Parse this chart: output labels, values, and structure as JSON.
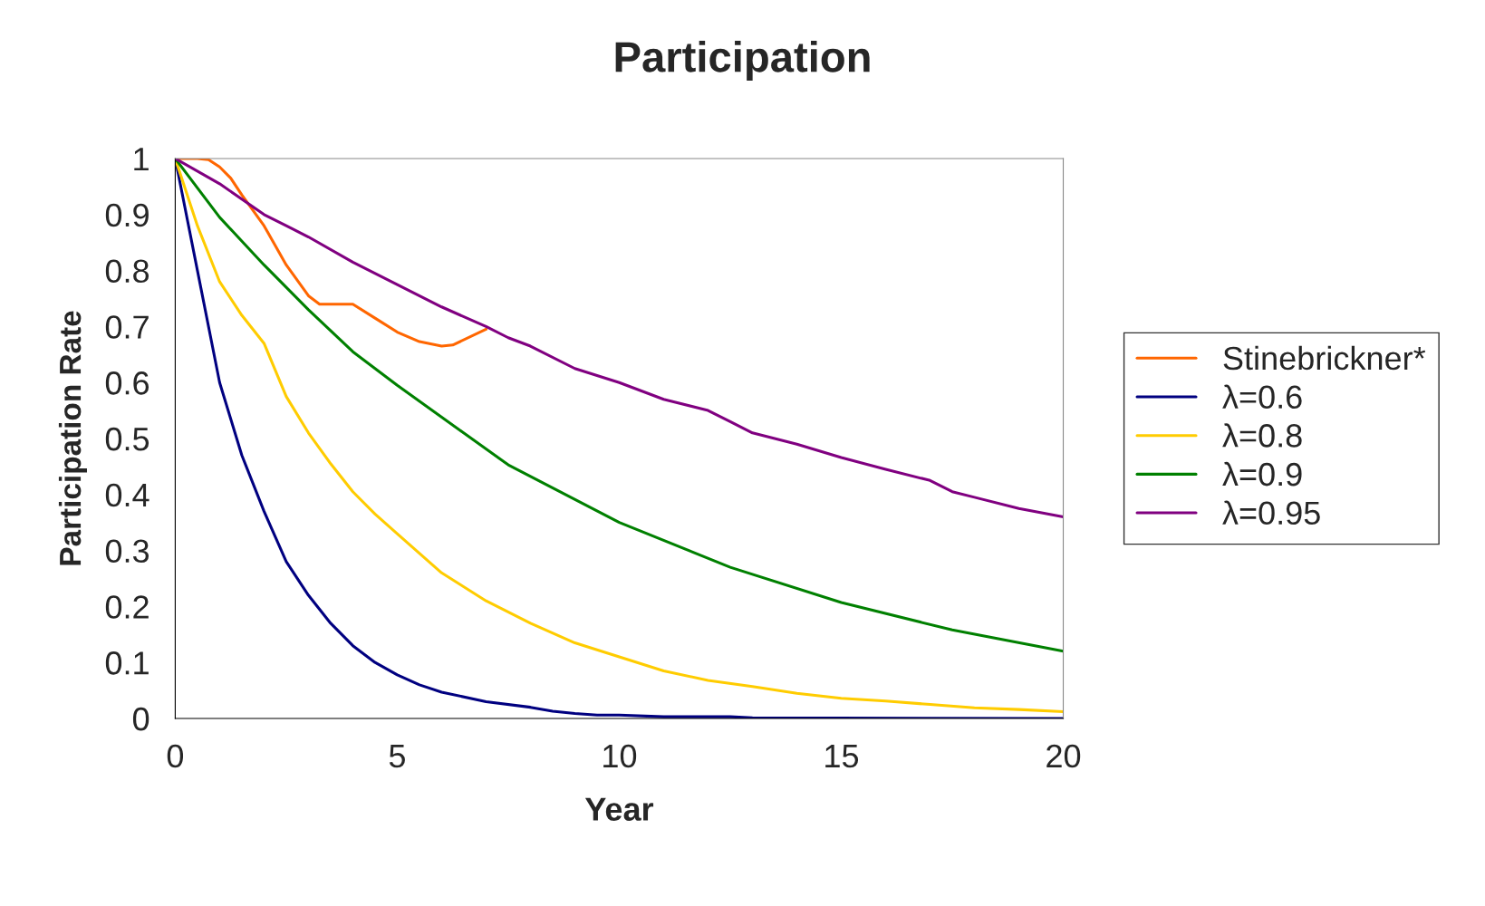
{
  "chart_data": {
    "type": "line",
    "title": "Participation",
    "xlabel": "Year",
    "ylabel": "Participation Rate",
    "xlim": [
      0,
      20
    ],
    "xticks": [
      0,
      5,
      10,
      15,
      20
    ],
    "ylim": [
      0,
      1
    ],
    "yticks": [
      0,
      0.1,
      0.2,
      0.3,
      0.4,
      0.5,
      0.6,
      0.7,
      0.8,
      0.9,
      1
    ],
    "grid": false,
    "legend": "right",
    "marker": "none",
    "line_style": "solid",
    "series": [
      {
        "name": "Stinebrickner*",
        "color": "#ff6600",
        "x": [
          0,
          0.5,
          0.75,
          1,
          1.25,
          1.5,
          2,
          2.5,
          3,
          3.25,
          4,
          4.5,
          5,
          5.5,
          6,
          6.25,
          7
        ],
        "values": [
          1,
          1,
          0.998,
          0.985,
          0.965,
          0.935,
          0.88,
          0.81,
          0.755,
          0.74,
          0.74,
          0.715,
          0.69,
          0.673,
          0.665,
          0.667,
          0.695
        ]
      },
      {
        "name": "λ=0.6",
        "color": "#000080",
        "x": [
          0,
          0.5,
          1,
          1.5,
          2,
          2.5,
          3,
          3.5,
          4,
          4.5,
          5,
          5.5,
          6,
          7,
          8,
          8.5,
          9,
          9.5,
          10,
          11,
          12,
          12.5,
          13,
          20
        ],
        "values": [
          1,
          0.8,
          0.6,
          0.47,
          0.37,
          0.28,
          0.22,
          0.17,
          0.13,
          0.1,
          0.078,
          0.06,
          0.047,
          0.03,
          0.02,
          0.013,
          0.009,
          0.006,
          0.006,
          0.003,
          0.003,
          0.003,
          0.001,
          0
        ]
      },
      {
        "name": "λ=0.8",
        "color": "#ffcc00",
        "x": [
          0,
          0.5,
          1,
          1.5,
          2,
          2.5,
          3,
          3.5,
          4,
          4.5,
          5,
          6,
          7,
          8,
          9,
          10,
          11,
          12,
          13,
          14,
          15,
          16,
          17,
          18,
          19,
          20
        ],
        "values": [
          1,
          0.88,
          0.78,
          0.72,
          0.67,
          0.575,
          0.51,
          0.455,
          0.405,
          0.365,
          0.33,
          0.26,
          0.21,
          0.17,
          0.135,
          0.11,
          0.085,
          0.068,
          0.057,
          0.045,
          0.036,
          0.031,
          0.025,
          0.019,
          0.016,
          0.012
        ]
      },
      {
        "name": "λ=0.9",
        "color": "#008000",
        "x": [
          0,
          1,
          2,
          2.5,
          3,
          4,
          5,
          7.5,
          10,
          12.5,
          15,
          17.5,
          20
        ],
        "values": [
          1,
          0.895,
          0.81,
          0.77,
          0.73,
          0.655,
          0.595,
          0.453,
          0.35,
          0.27,
          0.207,
          0.158,
          0.12
        ]
      },
      {
        "name": "λ=0.95",
        "color": "#800080",
        "x": [
          0,
          1,
          2,
          2.5,
          3,
          4,
          5,
          6,
          7,
          7.5,
          8,
          9,
          10,
          11,
          12,
          12.5,
          13,
          14,
          15,
          16,
          17,
          17.5,
          18,
          19,
          20
        ],
        "values": [
          1,
          0.955,
          0.9,
          0.88,
          0.86,
          0.815,
          0.775,
          0.735,
          0.7,
          0.68,
          0.665,
          0.625,
          0.6,
          0.57,
          0.55,
          0.53,
          0.51,
          0.49,
          0.466,
          0.445,
          0.425,
          0.405,
          0.395,
          0.375,
          0.36
        ]
      }
    ]
  }
}
